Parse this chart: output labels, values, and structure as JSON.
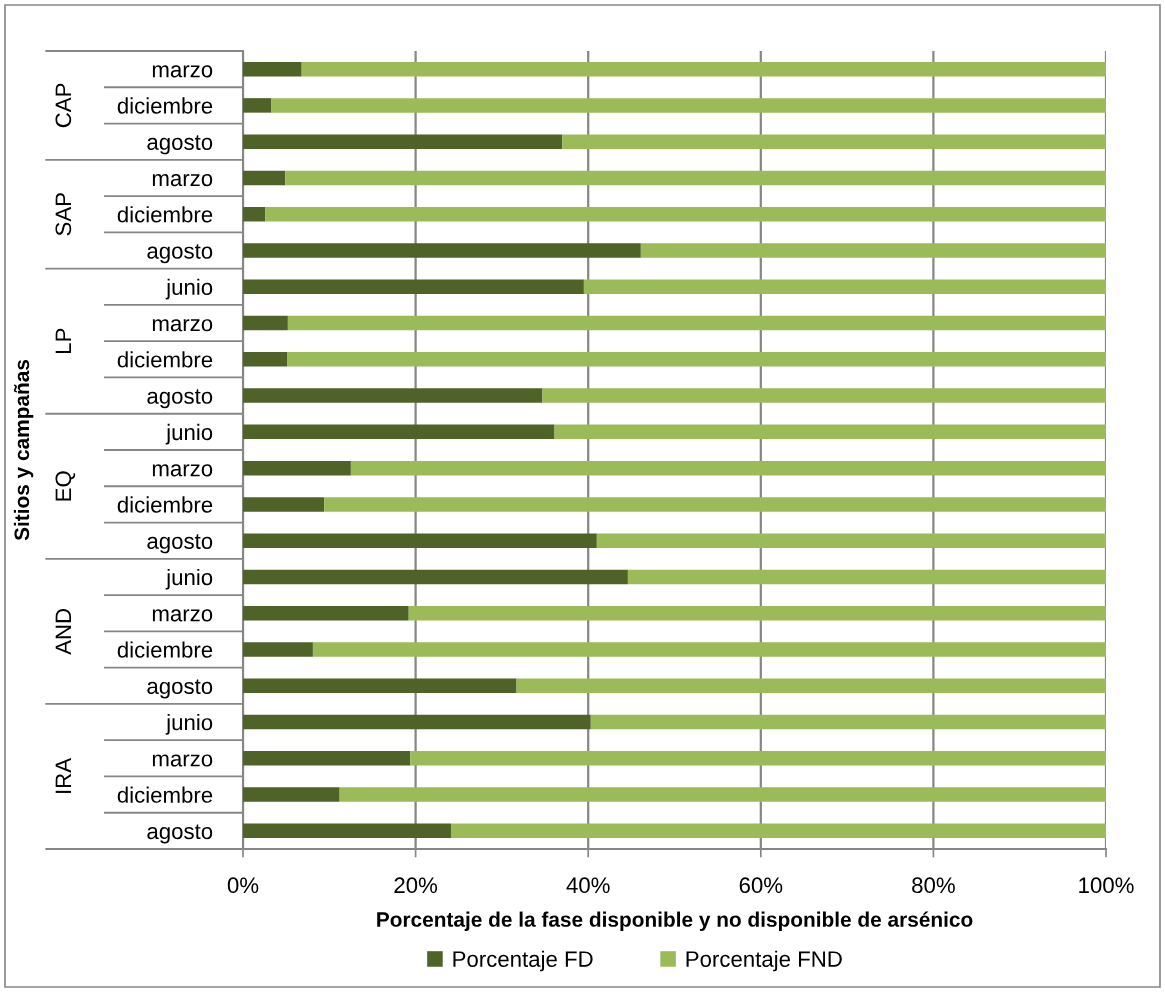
{
  "chart_data": {
    "type": "bar",
    "orientation": "horizontal",
    "stacked": true,
    "xlabel": "Porcentaje de la fase disponible y no disponible de arsénico",
    "ylabel": "Sitios y campañas",
    "categories": [
      "marzo",
      "diciembre",
      "agosto",
      "marzo",
      "diciembre",
      "agosto",
      "junio",
      "marzo",
      "diciembre",
      "agosto",
      "junio",
      "marzo",
      "diciembre",
      "agosto",
      "junio",
      "marzo",
      "diciembre",
      "agosto",
      "junio",
      "marzo",
      "diciembre",
      "agosto"
    ],
    "annotations": [
      "CAP",
      "SAP",
      "LP",
      "EQ",
      "AND",
      "IRA"
    ],
    "series": [
      {
        "name": "Porcentaje FD",
        "color": "#4f6228",
        "values": [
          6.8,
          3.3,
          37.0,
          4.9,
          2.6,
          46.1,
          39.5,
          5.2,
          5.1,
          34.7,
          36.1,
          12.5,
          9.4,
          41.0,
          44.6,
          19.2,
          8.1,
          31.7,
          40.3,
          19.4,
          11.2,
          24.1
        ]
      },
      {
        "name": "Porcentaje FND",
        "color": "#9bbb59",
        "values": [
          93.2,
          96.7,
          63.0,
          95.1,
          97.4,
          53.9,
          60.5,
          94.8,
          94.9,
          65.3,
          63.9,
          87.5,
          90.6,
          59.0,
          55.4,
          80.8,
          91.9,
          68.3,
          59.7,
          80.6,
          88.8,
          75.9
        ]
      }
    ],
    "xlim": [
      0,
      100
    ],
    "xticks": [
      {
        "value": 0,
        "label": "0%"
      },
      {
        "value": 20,
        "label": "20%"
      },
      {
        "value": 40,
        "label": "40%"
      },
      {
        "value": 60,
        "label": "60%"
      },
      {
        "value": 80,
        "label": "80%"
      },
      {
        "value": 100,
        "label": "100%"
      }
    ],
    "grid": "x",
    "legend": "bottom"
  }
}
